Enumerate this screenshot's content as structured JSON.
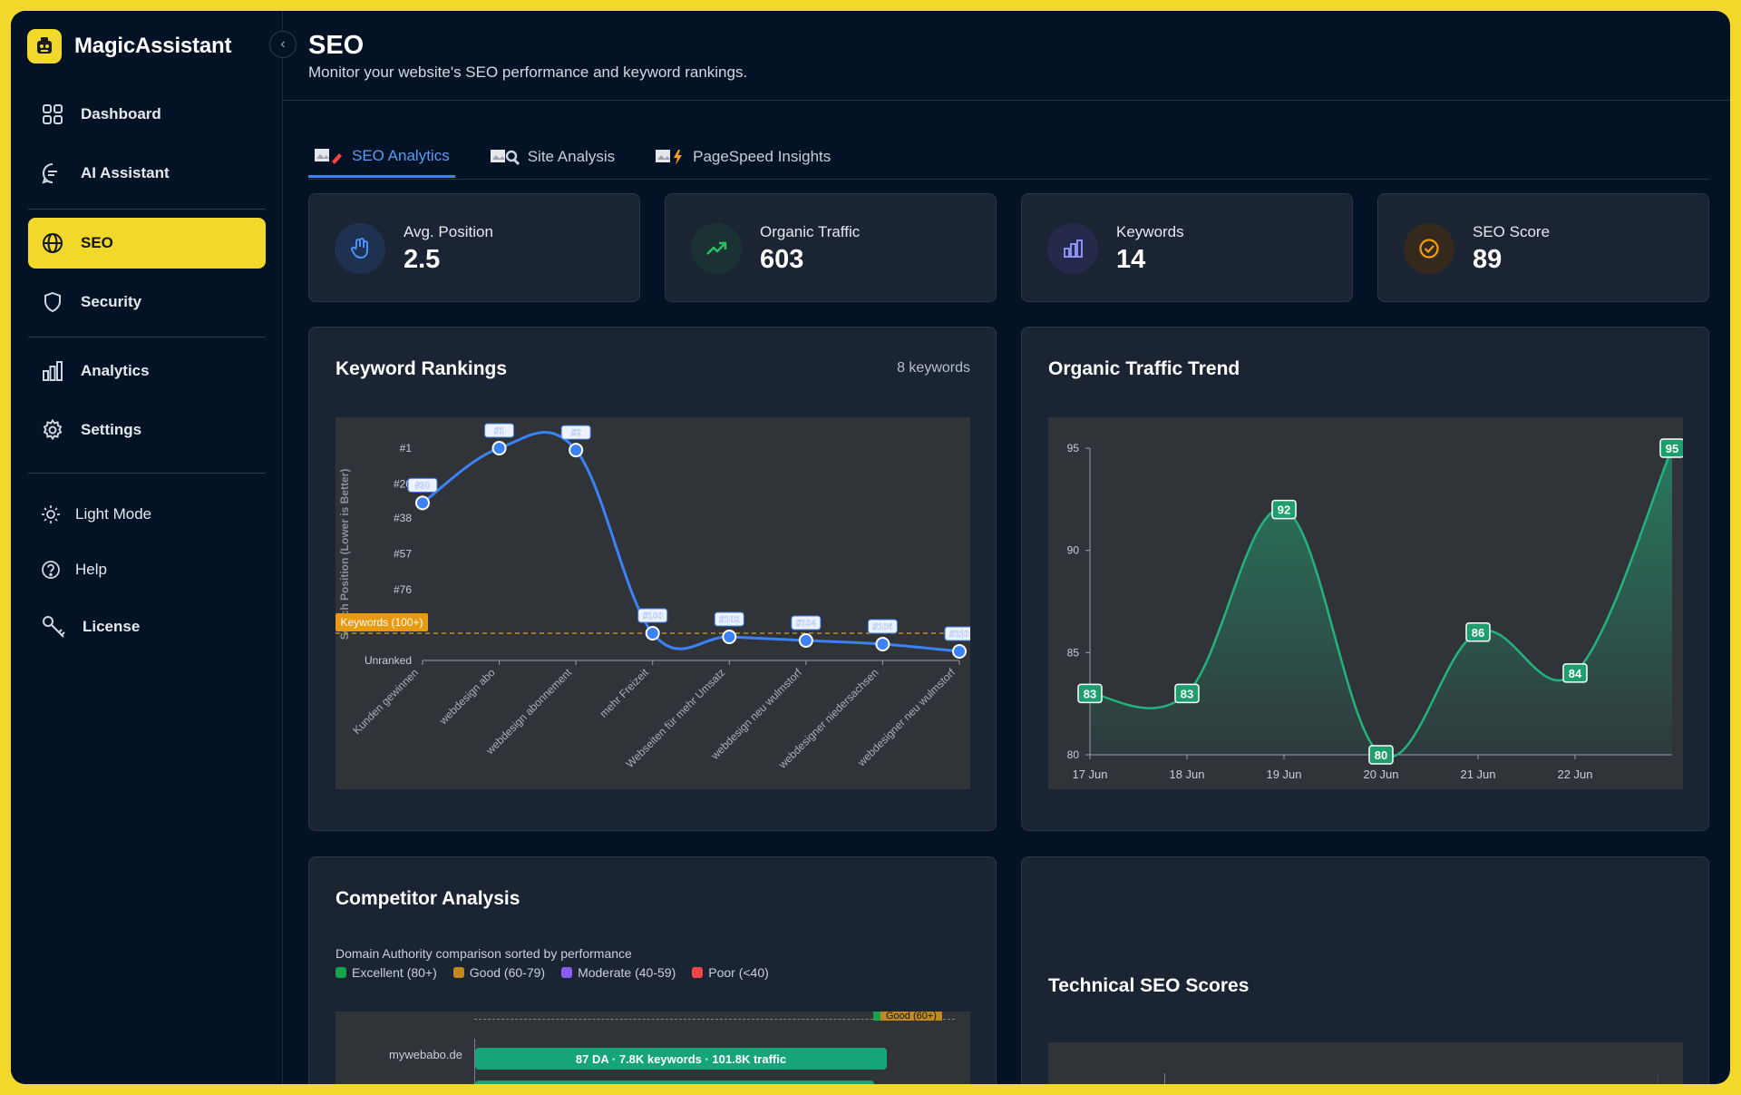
{
  "app": {
    "name": "MagicAssistant"
  },
  "sidebar": {
    "items": [
      {
        "label": "Dashboard",
        "icon": "grid-icon"
      },
      {
        "label": "AI Assistant",
        "icon": "chat-icon"
      },
      {
        "label": "SEO",
        "icon": "globe-icon",
        "active": true
      },
      {
        "label": "Security",
        "icon": "shield-icon"
      },
      {
        "label": "Analytics",
        "icon": "bar-chart-icon"
      },
      {
        "label": "Settings",
        "icon": "gear-icon"
      }
    ],
    "footer": [
      {
        "label": "Light Mode",
        "icon": "sun-icon"
      },
      {
        "label": "Help",
        "icon": "help-icon"
      },
      {
        "label": "License",
        "icon": "key-icon"
      }
    ]
  },
  "header": {
    "title": "SEO",
    "subtitle": "Monitor your website's SEO performance and keyword rankings."
  },
  "tabs": [
    {
      "label": "SEO Analytics",
      "active": true
    },
    {
      "label": "Site Analysis"
    },
    {
      "label": "PageSpeed Insights"
    }
  ],
  "stats": [
    {
      "label": "Avg. Position",
      "value": "2.5",
      "icon": "pointer-hand-icon",
      "color": "#3b82f6"
    },
    {
      "label": "Organic Traffic",
      "value": "603",
      "icon": "trending-up-icon",
      "color": "#22c55e"
    },
    {
      "label": "Keywords",
      "value": "14",
      "icon": "bar-chart-icon",
      "color": "#8b5cf6"
    },
    {
      "label": "SEO Score",
      "value": "89",
      "icon": "check-circle-icon",
      "color": "#f59e0b"
    }
  ],
  "keyword_rankings": {
    "title": "Keyword Rankings",
    "meta": "8 keywords",
    "threshold_label": "Keywords (100+)",
    "ylabel": "Search Position (Lower is Better)"
  },
  "organic_traffic": {
    "title": "Organic Traffic Trend"
  },
  "competitor": {
    "title": "Competitor Analysis",
    "description": "Domain Authority comparison sorted by performance",
    "legend": [
      {
        "label": "Excellent (80+)",
        "color": "#16a34a"
      },
      {
        "label": "Good (60-79)",
        "color": "#c28a1e"
      },
      {
        "label": "Moderate (40-59)",
        "color": "#8b5cf6"
      },
      {
        "label": "Poor (<40)",
        "color": "#ef4444"
      }
    ],
    "rows": [
      {
        "domain": "mywebabo.de",
        "label": "87 DA · 7.8K keywords · 101.8K traffic"
      }
    ],
    "top_badge": "Good (60+)"
  },
  "technical": {
    "title": "Technical SEO Scores"
  },
  "chart_data": [
    {
      "type": "line",
      "title": "Keyword Rankings",
      "ylabel": "Search Position (Lower is Better)",
      "categories": [
        "Kunden gewinnen",
        "webdesign abo",
        "webdesign abonnement",
        "mehr Freizeit",
        "Webseiten für mehr Umsatz",
        "webdesign neu wulmstorf",
        "webdesigner niedersachsen",
        "webdesigner neu wulmstorf"
      ],
      "values": [
        30,
        1,
        2,
        100,
        102,
        104,
        106,
        110
      ],
      "point_labels": [
        "#30",
        "#1",
        "#2",
        "#100",
        "#102",
        "#104",
        "#106",
        "#110"
      ],
      "yticks": [
        "#1",
        "#20",
        "#38",
        "#57",
        "#76",
        "Unranked"
      ],
      "ytick_values": [
        1,
        20,
        38,
        57,
        76,
        115
      ],
      "ylim": [
        115,
        0
      ],
      "threshold": 100,
      "series_color": "#3b82f6"
    },
    {
      "type": "area",
      "title": "Organic Traffic Trend",
      "x": [
        "17 Jun",
        "18 Jun",
        "19 Jun",
        "20 Jun",
        "21 Jun",
        "22 Jun",
        "23 Jun"
      ],
      "xticks": [
        "17 Jun",
        "18 Jun",
        "19 Jun",
        "20 Jun",
        "21 Jun",
        "22 Jun"
      ],
      "values": [
        83,
        83,
        92,
        80,
        86,
        84,
        95
      ],
      "yticks": [
        80,
        85,
        90,
        95
      ],
      "ylim": [
        80,
        95
      ],
      "series_color": "#22b37f"
    }
  ]
}
